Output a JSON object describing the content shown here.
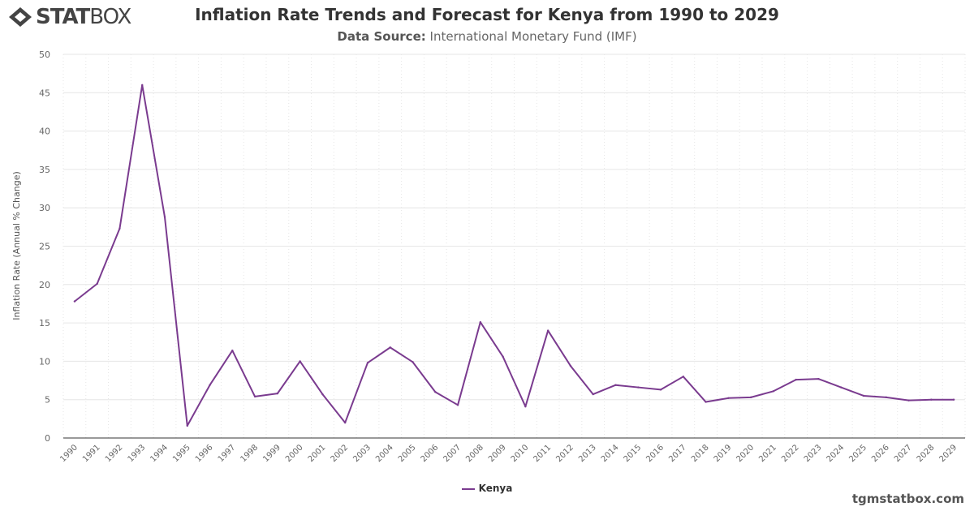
{
  "brand": {
    "logo_text_bold": "STAT",
    "logo_text_light": "BOX"
  },
  "header": {
    "title": "Inflation Rate Trends and Forecast for Kenya from 1990 to 2029",
    "source_label": "Data Source:",
    "source_value": "International Monetary Fund (IMF)"
  },
  "footer": {
    "credit": "tgmstatbox.com"
  },
  "chart_data": {
    "type": "line",
    "title": "Inflation Rate Trends and Forecast for Kenya from 1990 to 2029",
    "xlabel": "",
    "ylabel": "Inflation Rate (Annual % Change)",
    "ylim": [
      0,
      50
    ],
    "yticks": [
      0,
      5,
      10,
      15,
      20,
      25,
      30,
      35,
      40,
      45,
      50
    ],
    "grid": true,
    "legend": "bottom",
    "categories": [
      "1990",
      "1991",
      "1992",
      "1993",
      "1994",
      "1995",
      "1996",
      "1997",
      "1998",
      "1999",
      "2000",
      "2001",
      "2002",
      "2003",
      "2004",
      "2005",
      "2006",
      "2007",
      "2008",
      "2009",
      "2010",
      "2011",
      "2012",
      "2013",
      "2014",
      "2015",
      "2016",
      "2017",
      "2018",
      "2019",
      "2020",
      "2021",
      "2022",
      "2023",
      "2024",
      "2025",
      "2026",
      "2027",
      "2028",
      "2029"
    ],
    "series": [
      {
        "name": "Kenya",
        "color": "#7a3b8f",
        "values": [
          17.8,
          20.1,
          27.3,
          46.0,
          28.8,
          1.6,
          6.9,
          11.4,
          5.4,
          5.8,
          10.0,
          5.7,
          2.0,
          9.8,
          11.8,
          9.9,
          6.0,
          4.3,
          15.1,
          10.6,
          4.1,
          14.0,
          9.4,
          5.7,
          6.9,
          6.6,
          6.3,
          8.0,
          4.7,
          5.2,
          5.3,
          6.1,
          7.6,
          7.7,
          6.6,
          5.5,
          5.3,
          4.9,
          5.0,
          5.0
        ]
      }
    ]
  }
}
